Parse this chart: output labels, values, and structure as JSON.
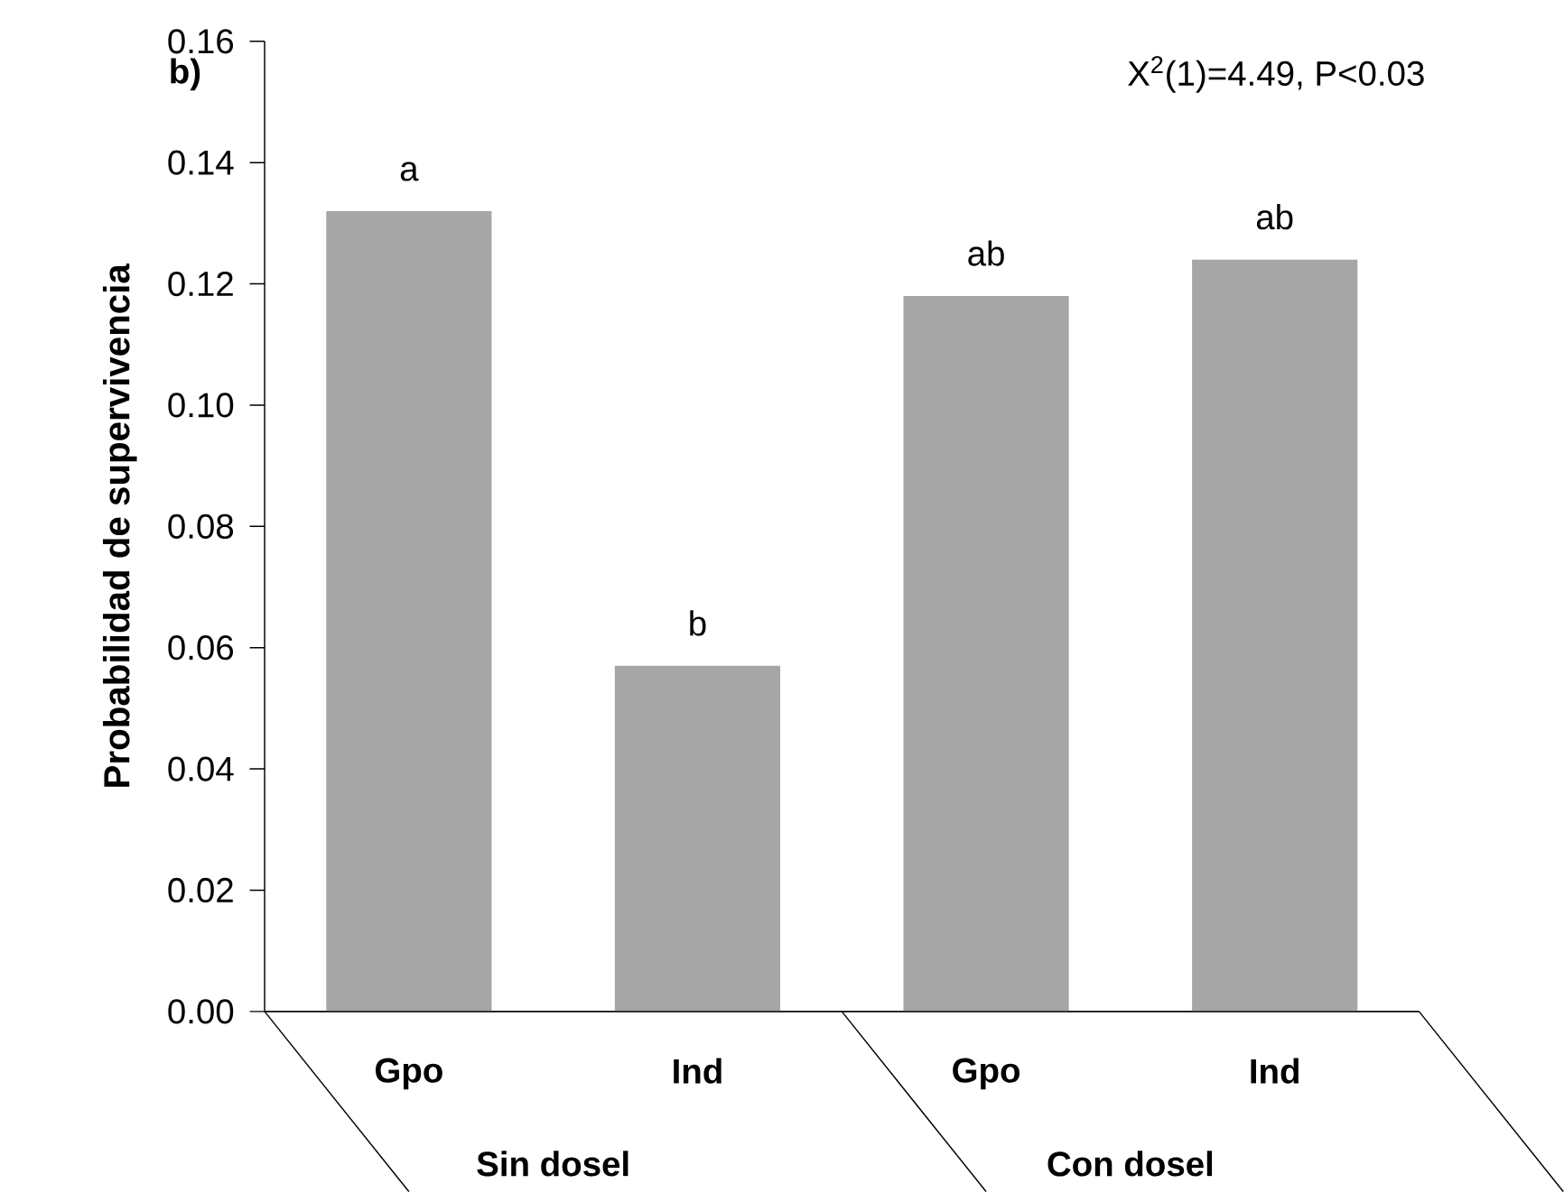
{
  "chart_data": {
    "type": "bar",
    "ylabel": "Probabilidad de supervivencia",
    "categories": [
      "Gpo",
      "Ind",
      "Gpo",
      "Ind"
    ],
    "values": [
      0.132,
      0.057,
      0.118,
      0.124
    ],
    "value_labels": [
      "a",
      "b",
      "ab",
      "ab"
    ],
    "color": "#a6a6a6",
    "ylim": [
      0,
      0.16
    ],
    "yticks": [
      {
        "value": 0,
        "label": "0.00"
      },
      {
        "value": 0.02,
        "label": "0.02"
      },
      {
        "value": 0.04,
        "label": "0.04"
      },
      {
        "value": 0.06,
        "label": "0.06"
      },
      {
        "value": 0.08,
        "label": "0.08"
      },
      {
        "value": 0.1,
        "label": "0.10"
      },
      {
        "value": 0.12,
        "label": "0.12"
      },
      {
        "value": 0.14,
        "label": "0.14"
      },
      {
        "value": 0.16,
        "label": "0.16"
      }
    ],
    "annotations": [
      "b)",
      "X$^{2}$(1)=4.49, P<0.03",
      "Sin dosel",
      "Con dosel"
    ]
  }
}
